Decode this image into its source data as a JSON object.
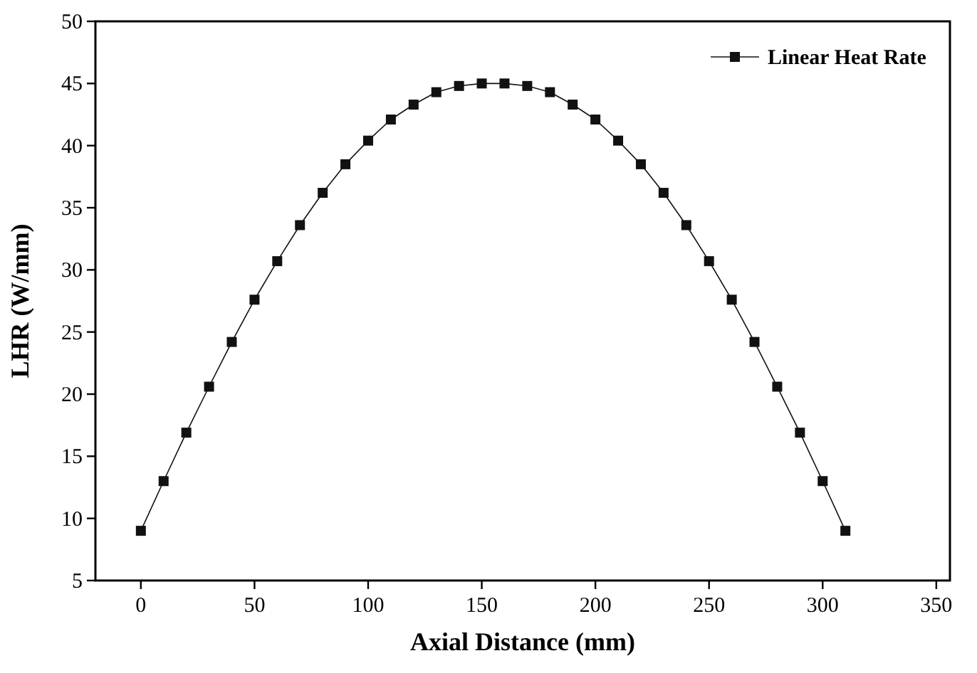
{
  "chart_data": {
    "type": "line",
    "xlabel": "Axial Distance (mm)",
    "ylabel": "LHR (W/mm)",
    "x": [
      0,
      10,
      20,
      30,
      40,
      50,
      60,
      70,
      80,
      90,
      100,
      110,
      120,
      130,
      140,
      150,
      160,
      170,
      180,
      190,
      200,
      210,
      220,
      230,
      240,
      250,
      260,
      270,
      280,
      290,
      300,
      310
    ],
    "series": [
      {
        "name": "Linear Heat Rate",
        "color": "#111111",
        "values": [
          9,
          13,
          16.9,
          20.6,
          24.2,
          27.6,
          30.7,
          33.6,
          36.2,
          38.5,
          40.4,
          42.1,
          43.3,
          44.3,
          44.8,
          45,
          45,
          44.8,
          44.3,
          43.3,
          42.1,
          40.4,
          38.5,
          36.2,
          33.6,
          30.7,
          27.6,
          24.2,
          20.6,
          16.9,
          13,
          9
        ]
      }
    ],
    "xlim": [
      -20,
      356
    ],
    "xticks": [
      0,
      50,
      100,
      150,
      200,
      250,
      300,
      350
    ],
    "ylim": [
      5,
      50
    ],
    "yticks": [
      5,
      10,
      15,
      20,
      25,
      30,
      35,
      40,
      45,
      50
    ],
    "grid": false,
    "legend": "top right",
    "marker": "square",
    "line_style": "solid"
  }
}
